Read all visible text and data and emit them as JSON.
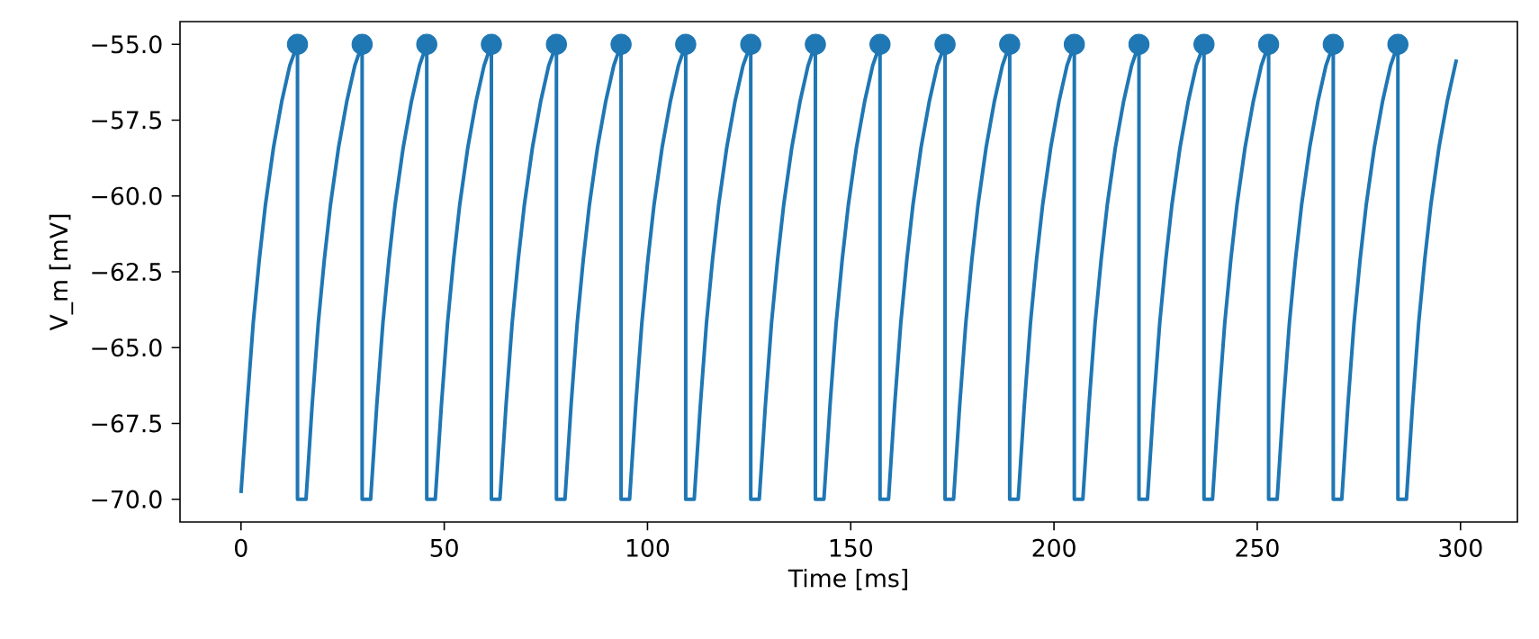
{
  "chart_data": {
    "type": "line",
    "xlabel": "Time [ms]",
    "ylabel": "V_m [mV]",
    "xlim": [
      -15,
      314
    ],
    "ylim": [
      -70.75,
      -54.25
    ],
    "xticks": [
      0,
      50,
      100,
      150,
      200,
      250,
      300
    ],
    "yticks": [
      {
        "value": -70,
        "label": "−70.0"
      },
      {
        "value": -67.5,
        "label": "−67.5"
      },
      {
        "value": -65,
        "label": "−65.0"
      },
      {
        "value": -62.5,
        "label": "−62.5"
      },
      {
        "value": -60,
        "label": "−60.0"
      },
      {
        "value": -57.5,
        "label": "−57.5"
      },
      {
        "value": -55,
        "label": "−55.0"
      }
    ],
    "series": [
      {
        "color": "#1f77b4",
        "marker": "none",
        "x": [
          0,
          1.5,
          3,
          4.5,
          6,
          8,
          10,
          12,
          13.9,
          13.9,
          16.0,
          17.5,
          19.0,
          20.5,
          22.0,
          24.0,
          26.0,
          28.0,
          29.8,
          29.8,
          31.9,
          33.4,
          34.9,
          36.4,
          37.9,
          39.9,
          41.9,
          43.9,
          45.7,
          45.7,
          47.8,
          49.3,
          50.8,
          52.3,
          53.8,
          55.8,
          57.8,
          59.8,
          61.6,
          61.6,
          63.7,
          65.2,
          66.7,
          68.2,
          69.7,
          71.7,
          73.7,
          75.7,
          77.6,
          77.6,
          79.7,
          81.2,
          82.7,
          84.2,
          85.7,
          87.7,
          89.7,
          91.7,
          93.5,
          93.5,
          95.6,
          97.1,
          98.6,
          100.1,
          101.6,
          103.6,
          105.6,
          107.6,
          109.4,
          109.4,
          111.5,
          113.0,
          114.5,
          116.0,
          117.5,
          119.5,
          121.5,
          123.5,
          125.4,
          125.4,
          127.5,
          129.0,
          130.5,
          132.0,
          133.5,
          135.5,
          137.5,
          139.5,
          141.3,
          141.3,
          143.4,
          144.9,
          146.4,
          147.9,
          149.4,
          151.4,
          153.4,
          155.4,
          157.2,
          157.2,
          159.3,
          160.8,
          162.3,
          163.8,
          165.3,
          167.3,
          169.3,
          171.3,
          173.2,
          173.2,
          175.3,
          176.8,
          178.3,
          179.8,
          181.3,
          183.3,
          185.3,
          187.3,
          189.1,
          189.1,
          191.2,
          192.7,
          194.2,
          195.7,
          197.2,
          199.2,
          201.2,
          203.2,
          205.0,
          205.0,
          207.1,
          208.6,
          210.1,
          211.6,
          213.1,
          215.1,
          217.1,
          219.1,
          220.9,
          220.9,
          223.0,
          224.5,
          226.0,
          227.5,
          229.0,
          231.0,
          233.0,
          235.0,
          236.9,
          236.9,
          239.0,
          240.5,
          242.0,
          243.5,
          245.0,
          247.0,
          249.0,
          251.0,
          252.8,
          252.8,
          254.9,
          256.4,
          257.9,
          259.4,
          260.9,
          262.9,
          264.9,
          266.9,
          268.7,
          268.7,
          270.8,
          272.3,
          273.8,
          275.3,
          276.8,
          278.8,
          280.8,
          282.8,
          284.6,
          284.6,
          286.7,
          288.2,
          289.7,
          291.2,
          292.7,
          294.7,
          296.7,
          299.0
        ],
        "values": [
          -69.8,
          -66.9,
          -64.2,
          -62.1,
          -60.3,
          -58.4,
          -56.9,
          -55.7,
          -55,
          -70,
          -70,
          -66.9,
          -64.2,
          -62.1,
          -60.3,
          -58.4,
          -56.9,
          -55.7,
          -55,
          -70,
          -70,
          -66.9,
          -64.2,
          -62.1,
          -60.3,
          -58.4,
          -56.9,
          -55.7,
          -55,
          -70,
          -70,
          -66.9,
          -64.2,
          -62.1,
          -60.3,
          -58.4,
          -56.9,
          -55.7,
          -55,
          -70,
          -70,
          -66.9,
          -64.2,
          -62.1,
          -60.3,
          -58.4,
          -56.9,
          -55.7,
          -55,
          -70,
          -70,
          -66.9,
          -64.2,
          -62.1,
          -60.3,
          -58.4,
          -56.9,
          -55.7,
          -55,
          -70,
          -70,
          -66.9,
          -64.2,
          -62.1,
          -60.3,
          -58.4,
          -56.9,
          -55.7,
          -55,
          -70,
          -70,
          -66.9,
          -64.2,
          -62.1,
          -60.3,
          -58.4,
          -56.9,
          -55.7,
          -55,
          -70,
          -70,
          -66.9,
          -64.2,
          -62.1,
          -60.3,
          -58.4,
          -56.9,
          -55.7,
          -55,
          -70,
          -70,
          -66.9,
          -64.2,
          -62.1,
          -60.3,
          -58.4,
          -56.9,
          -55.7,
          -55,
          -70,
          -70,
          -66.9,
          -64.2,
          -62.1,
          -60.3,
          -58.4,
          -56.9,
          -55.7,
          -55,
          -70,
          -70,
          -66.9,
          -64.2,
          -62.1,
          -60.3,
          -58.4,
          -56.9,
          -55.7,
          -55,
          -70,
          -70,
          -66.9,
          -64.2,
          -62.1,
          -60.3,
          -58.4,
          -56.9,
          -55.7,
          -55,
          -70,
          -70,
          -66.9,
          -64.2,
          -62.1,
          -60.3,
          -58.4,
          -56.9,
          -55.7,
          -55,
          -70,
          -70,
          -66.9,
          -64.2,
          -62.1,
          -60.3,
          -58.4,
          -56.9,
          -55.7,
          -55,
          -70,
          -70,
          -66.9,
          -64.2,
          -62.1,
          -60.3,
          -58.4,
          -56.9,
          -55.7,
          -55,
          -70,
          -70,
          -66.9,
          -64.2,
          -62.1,
          -60.3,
          -58.4,
          -56.9,
          -55.7,
          -55,
          -70,
          -70,
          -66.9,
          -64.2,
          -62.1,
          -60.3,
          -58.4,
          -56.9,
          -55.7,
          -55,
          -70,
          -70,
          -66.9,
          -64.2,
          -62.1,
          -60.3,
          -58.4,
          -56.9,
          -55.5
        ]
      },
      {
        "type": "scatter",
        "color": "#1f77b4",
        "marker": "circle",
        "x": [
          13.9,
          29.8,
          45.7,
          61.6,
          77.6,
          93.5,
          109.4,
          125.4,
          141.3,
          157.2,
          173.2,
          189.1,
          205.0,
          220.9,
          236.9,
          252.8,
          268.7,
          284.6
        ],
        "values": [
          -55,
          -55,
          -55,
          -55,
          -55,
          -55,
          -55,
          -55,
          -55,
          -55,
          -55,
          -55,
          -55,
          -55,
          -55,
          -55,
          -55,
          -55
        ]
      }
    ]
  }
}
